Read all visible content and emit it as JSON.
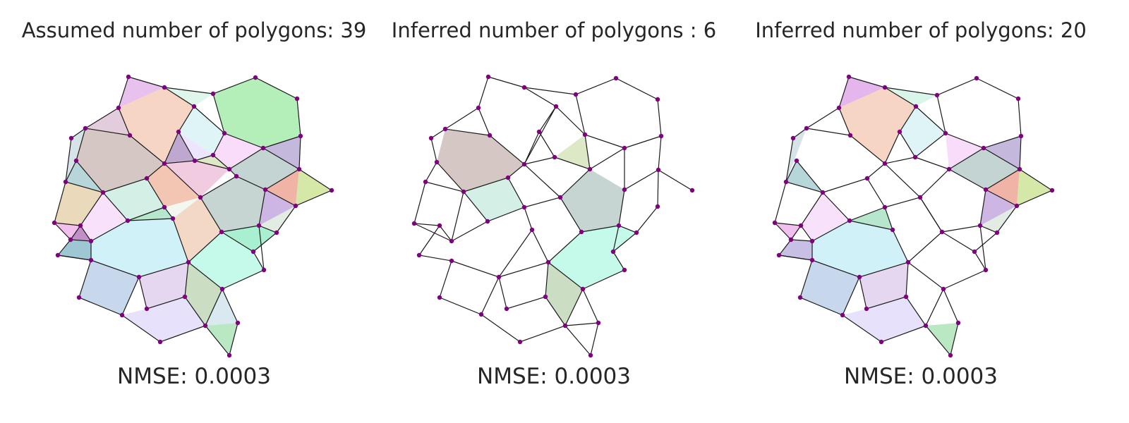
{
  "panels": [
    {
      "title": "Assumed number of polygons: 39",
      "metric": "NMSE: 0.0003"
    },
    {
      "title": "Inferred number of polygons : 6",
      "metric": "NMSE: 0.0003"
    },
    {
      "title": "Inferred number of polygons: 20",
      "metric": "NMSE: 0.0003"
    }
  ],
  "colors": {
    "node": "#800080",
    "edge": "#1a1a1a",
    "text": "#262626"
  }
}
